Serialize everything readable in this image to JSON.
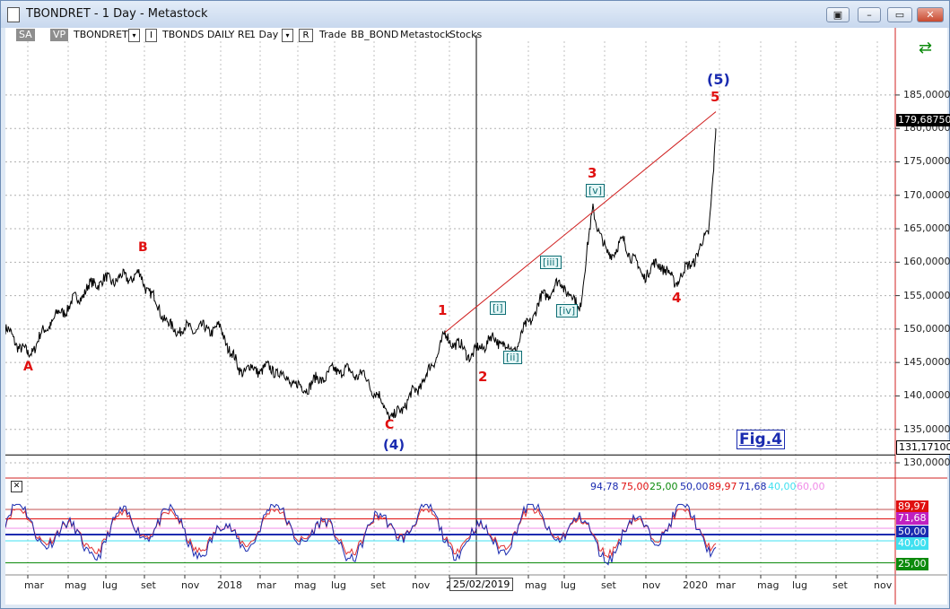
{
  "window": {
    "title": "TBONDRET - 1 Day - Metastock"
  },
  "toolbar": {
    "sa": "SA",
    "vp": "VP",
    "symbol": "TBONDRET",
    "i_label": "I",
    "desc": "TBONDS DAILY RE",
    "period": "1 Day",
    "r_label": "R",
    "trade": "Trade",
    "bond": "BB_BOND",
    "src": "Metastock",
    "stocks": "Stocks"
  },
  "price_axis": [
    "185,000000",
    "180,000000",
    "175,000000",
    "170,000000",
    "165,000000",
    "160,000000",
    "155,000000",
    "150,000000",
    "145,000000",
    "140,000000",
    "135,000000",
    "130,000000"
  ],
  "price_axis_range": [
    130,
    187
  ],
  "last_price": "179,68750",
  "line_price": "131,17100",
  "time_axis": [
    "mar",
    "mag",
    "lug",
    "set",
    "nov",
    "2018",
    "mar",
    "mag",
    "lug",
    "set",
    "nov",
    "2",
    "mag",
    "lug",
    "set",
    "nov",
    "2020",
    "mar",
    "mag",
    "lug",
    "set",
    "nov"
  ],
  "crosshair_date": "25/02/2019",
  "fig_label": "Fig.4",
  "wave_labels": {
    "A": "A",
    "B": "B",
    "C": "C",
    "w4": "(4)",
    "w1": "1",
    "w2": "2",
    "w3": "3",
    "w4r": "4",
    "w5": "5",
    "w5b": "(5)",
    "i": "[i]",
    "ii": "[ii]",
    "iii": "[iii]",
    "iv": "[iv]",
    "v": "[v]"
  },
  "osc_values": {
    "v1": "94,78",
    "v2": "75,00",
    "v3": "25,00",
    "v4": "50,00",
    "v5": "89,97",
    "v6": "71,68",
    "v7": "40,00",
    "v8": "60,00"
  },
  "osc_axis": [
    "89,97",
    "71,68",
    "50,00",
    "40,00",
    "25,00"
  ],
  "colors": {
    "price": "#000000",
    "trendline": "#d02020",
    "osc_line": "#1a2bb0",
    "osc_red": "#e01010",
    "osc_cyan": "#40e0f0",
    "osc_green": "#0c8a0c",
    "osc_pink": "#f08ce8"
  },
  "chart_data": {
    "type": "line",
    "xlabel": "",
    "ylabel": "",
    "ylim": [
      130,
      187
    ],
    "x": [
      "2017-03",
      "2017-05",
      "2017-07",
      "2017-09",
      "2017-11",
      "2018-01",
      "2018-03",
      "2018-05",
      "2018-07",
      "2018-09",
      "2018-11",
      "2019-01",
      "2019-03",
      "2019-05",
      "2019-07",
      "2019-09",
      "2019-11",
      "2020-01",
      "2020-02"
    ],
    "series": [
      {
        "values": [
          150,
          147.5,
          152,
          157,
          152,
          151,
          149,
          145,
          144,
          142,
          141,
          136.5,
          148.5,
          145,
          152,
          168,
          158.5,
          157,
          180
        ]
      }
    ]
  }
}
